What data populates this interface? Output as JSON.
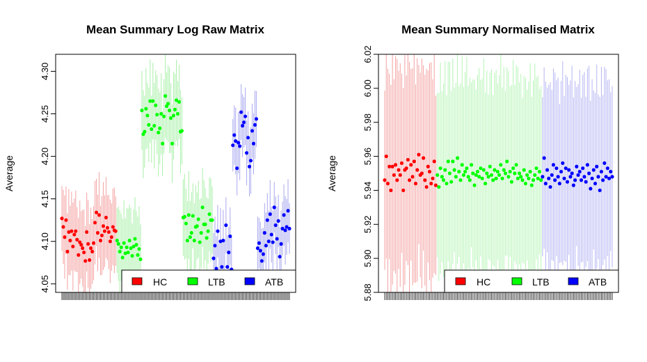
{
  "chart_data": [
    {
      "type": "scatter",
      "title": "Mean Summary Log Raw Matrix",
      "ylabel": "Average",
      "ylim": [
        4.04,
        4.32
      ],
      "yticks": [
        "4.05",
        "4.10",
        "4.15",
        "4.20",
        "4.25",
        "4.30"
      ],
      "grid": false,
      "legend": {
        "position": "bottom-right",
        "entries": [
          "HC",
          "LTB",
          "ATB"
        ]
      },
      "series": [
        {
          "name": "HC",
          "color": "#ff0000",
          "error_color": "#f4a0a0",
          "values": [
            4.127,
            4.117,
            4.105,
            4.125,
            4.088,
            4.111,
            4.101,
            4.112,
            4.094,
            4.108,
            4.112,
            4.102,
            4.084,
            4.099,
            4.096,
            4.092,
            4.087,
            4.077,
            4.111,
            4.097,
            4.078,
            4.092,
            4.088,
            4.098,
            4.122,
            4.134,
            4.11,
            4.131,
            4.101,
            4.107,
            4.118,
            4.112,
            4.128,
            4.116,
            4.111,
            4.1,
            4.105,
            4.117,
            4.113,
            4.112
          ],
          "half_range": 0.045
        },
        {
          "name": "LTB",
          "color": "#00ff00",
          "error_color": "#a8f0a8",
          "values": [
            4.101,
            4.097,
            4.088,
            4.093,
            4.081,
            4.098,
            4.086,
            4.093,
            4.087,
            4.101,
            4.092,
            4.083,
            4.094,
            4.103,
            4.096,
            4.084,
            4.091,
            4.079,
            4.254,
            4.226,
            4.229,
            4.256,
            4.248,
            4.237,
            4.265,
            4.232,
            4.265,
            4.236,
            4.26,
            4.249,
            4.228,
            4.233,
            4.25,
            4.215,
            4.247,
            4.271,
            4.259,
            4.262,
            4.254,
            4.245,
            4.215,
            4.248,
            4.255,
            4.266,
            4.25,
            4.264,
            4.229,
            4.23,
            4.128,
            4.129,
            4.121,
            4.101,
            4.131,
            4.105,
            4.11,
            4.13,
            4.101,
            4.117,
            4.118,
            4.126,
            4.099,
            4.11,
            4.14,
            4.12,
            4.12,
            4.104,
            4.112,
            4.132,
            4.125,
            4.125
          ],
          "half_range": 0.045
        },
        {
          "name": "ATB",
          "color": "#0000ff",
          "error_color": "#a8a8f0",
          "values": [
            4.08,
            4.095,
            4.068,
            4.112,
            4.063,
            4.1,
            4.07,
            4.101,
            4.062,
            4.119,
            4.07,
            4.087,
            4.106,
            4.067,
            4.213,
            4.225,
            4.218,
            4.186,
            4.216,
            4.212,
            4.252,
            4.236,
            4.24,
            4.247,
            4.204,
            4.222,
            4.188,
            4.195,
            4.23,
            4.215,
            4.237,
            4.244,
            4.092,
            4.098,
            4.089,
            4.077,
            4.085,
            4.11,
            4.095,
            4.125,
            4.1,
            4.132,
            4.108,
            4.099,
            4.14,
            4.119,
            4.103,
            4.124,
            4.082,
            4.097,
            4.115,
            4.131,
            4.113,
            4.117,
            4.136,
            4.115
          ],
          "half_range": 0.035
        }
      ]
    },
    {
      "type": "scatter",
      "title": "Mean Summary Normalised Matrix",
      "ylabel": "Average",
      "ylim": [
        5.88,
        6.02
      ],
      "yticks": [
        "5.88",
        "5.90",
        "5.92",
        "5.94",
        "5.96",
        "5.98",
        "6.00",
        "6.02"
      ],
      "grid": false,
      "legend": {
        "position": "bottom-right",
        "entries": [
          "HC",
          "LTB",
          "ATB"
        ]
      },
      "series": [
        {
          "name": "HC",
          "color": "#ff0000",
          "error_color": "#f4a0a0",
          "values": [
            5.946,
            5.96,
            5.944,
            5.954,
            5.94,
            5.954,
            5.949,
            5.955,
            5.946,
            5.952,
            5.949,
            5.956,
            5.94,
            5.952,
            5.953,
            5.958,
            5.946,
            5.955,
            5.948,
            5.957,
            5.944,
            5.952,
            5.961,
            5.949,
            5.95,
            5.959,
            5.946,
            5.942,
            5.954,
            5.951,
            5.944,
            5.947,
            5.957,
            5.943
          ],
          "half_range": 0.062
        },
        {
          "name": "LTB",
          "color": "#00ff00",
          "error_color": "#b4f4b4",
          "values": [
            5.949,
            5.942,
            5.953,
            5.948,
            5.946,
            5.952,
            5.944,
            5.957,
            5.95,
            5.945,
            5.957,
            5.952,
            5.948,
            5.959,
            5.951,
            5.946,
            5.955,
            5.949,
            5.951,
            5.953,
            5.948,
            5.946,
            5.955,
            5.95,
            5.943,
            5.949,
            5.951,
            5.948,
            5.953,
            5.947,
            5.952,
            5.944,
            5.95,
            5.948,
            5.954,
            5.949,
            5.946,
            5.952,
            5.947,
            5.951,
            5.949,
            5.955,
            5.947,
            5.952,
            5.95,
            5.957,
            5.948,
            5.951,
            5.945,
            5.953,
            5.95,
            5.955,
            5.947,
            5.95,
            5.948,
            5.946,
            5.952,
            5.944,
            5.949,
            5.947,
            5.951,
            5.943,
            5.946,
            5.949,
            5.953,
            5.947,
            5.951,
            5.946
          ],
          "half_range": 0.057
        },
        {
          "name": "ATB",
          "color": "#0000ff",
          "error_color": "#b4b4f4",
          "values": [
            5.948,
            5.959,
            5.944,
            5.952,
            5.947,
            5.942,
            5.949,
            5.955,
            5.946,
            5.953,
            5.948,
            5.944,
            5.951,
            5.956,
            5.947,
            5.953,
            5.945,
            5.952,
            5.948,
            5.95,
            5.943,
            5.946,
            5.954,
            5.949,
            5.951,
            5.946,
            5.953,
            5.948,
            5.945,
            5.955,
            5.95,
            5.941,
            5.947,
            5.952,
            5.944,
            5.954,
            5.948,
            5.94,
            5.951,
            5.946,
            5.956,
            5.948,
            5.953,
            5.947,
            5.951,
            5.948
          ],
          "half_range": 0.055
        }
      ]
    }
  ]
}
